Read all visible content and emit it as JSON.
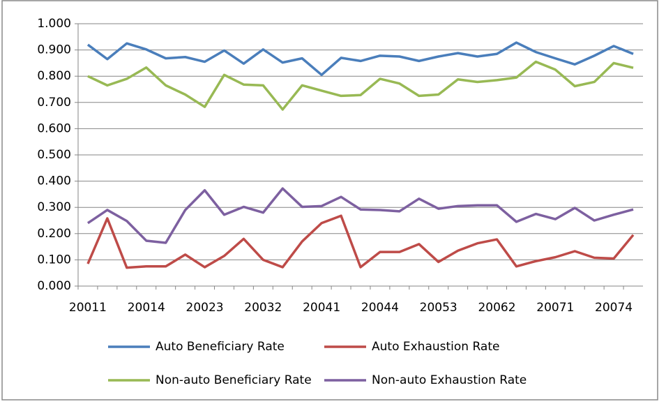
{
  "chart_data": {
    "type": "line",
    "categories": [
      "20011",
      null,
      null,
      "20014",
      null,
      null,
      "20023",
      null,
      null,
      "20032",
      null,
      null,
      "20041",
      null,
      null,
      "20044",
      null,
      null,
      "20053",
      null,
      null,
      "20062",
      null,
      null,
      "20071",
      null,
      null,
      "20074",
      null
    ],
    "series": [
      {
        "name": "Auto Beneficiary Rate",
        "color": "#4a7ebb",
        "values": [
          0.92,
          0.865,
          0.925,
          0.902,
          0.868,
          0.873,
          0.855,
          0.898,
          0.848,
          0.902,
          0.852,
          0.868,
          0.805,
          0.87,
          0.858,
          0.878,
          0.875,
          0.858,
          0.875,
          0.888,
          0.875,
          0.885,
          0.928,
          0.892,
          0.868,
          0.845,
          0.878,
          0.915,
          0.885
        ]
      },
      {
        "name": "Auto Exhaustion Rate",
        "color": "#be4b48",
        "values": [
          0.085,
          0.258,
          0.07,
          0.075,
          0.075,
          0.12,
          0.072,
          0.115,
          0.18,
          0.1,
          0.072,
          0.17,
          0.24,
          0.268,
          0.072,
          0.13,
          0.13,
          0.16,
          0.092,
          0.135,
          0.163,
          0.178,
          0.075,
          0.095,
          0.11,
          0.133,
          0.108,
          0.105,
          0.195
        ]
      },
      {
        "name": "Non-auto Beneficiary Rate",
        "color": "#98b954",
        "values": [
          0.8,
          0.765,
          0.79,
          0.833,
          0.765,
          0.73,
          0.683,
          0.805,
          0.768,
          0.765,
          0.673,
          0.765,
          0.745,
          0.725,
          0.728,
          0.79,
          0.772,
          0.725,
          0.73,
          0.788,
          0.778,
          0.785,
          0.795,
          0.855,
          0.825,
          0.762,
          0.778,
          0.85,
          0.832
        ]
      },
      {
        "name": "Non-auto Exhaustion Rate",
        "color": "#7d60a0",
        "values": [
          0.24,
          0.29,
          0.248,
          0.173,
          0.165,
          0.29,
          0.365,
          0.272,
          0.302,
          0.28,
          0.372,
          0.302,
          0.305,
          0.34,
          0.292,
          0.29,
          0.285,
          0.333,
          0.295,
          0.305,
          0.308,
          0.308,
          0.245,
          0.275,
          0.255,
          0.298,
          0.25,
          0.272,
          0.292
        ]
      }
    ],
    "ylim": [
      0,
      1
    ],
    "yticks": [
      {
        "value": 0,
        "label": "0.000"
      },
      {
        "value": 0.1,
        "label": "0.100"
      },
      {
        "value": 0.2,
        "label": "0.200"
      },
      {
        "value": 0.3,
        "label": "0.300"
      },
      {
        "value": 0.4,
        "label": "0.400"
      },
      {
        "value": 0.5,
        "label": "0.500"
      },
      {
        "value": 0.6,
        "label": "0.600"
      },
      {
        "value": 0.7,
        "label": "0.700"
      },
      {
        "value": 0.8,
        "label": "0.800"
      },
      {
        "value": 0.9,
        "label": "0.900"
      },
      {
        "value": 1,
        "label": "1.000"
      }
    ],
    "grid": true,
    "legend": "bottom"
  }
}
